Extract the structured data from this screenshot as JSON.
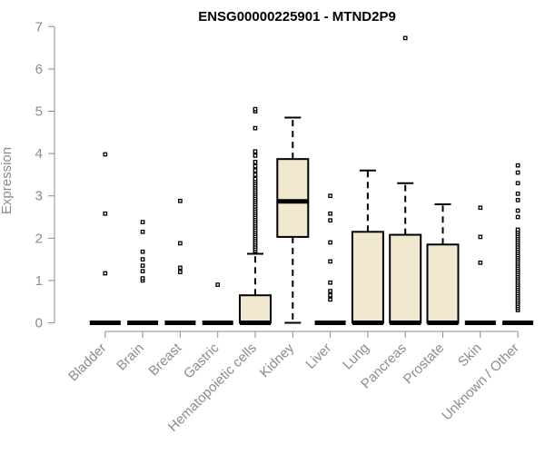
{
  "chart_data": {
    "type": "boxplot",
    "title": "ENSG00000225901 - MTND2P9",
    "xlabel": "",
    "ylabel": "Expression",
    "ylim": [
      0,
      7
    ],
    "yticks": [
      0,
      1,
      2,
      3,
      4,
      5,
      6,
      7
    ],
    "box_fill": "#f0e9cf",
    "box_stroke": "#000000",
    "point_color": "#000000",
    "axis_color": "#8c8c8c",
    "categories": [
      "Bladder",
      "Brain",
      "Breast",
      "Gastric",
      "Hematopoietic cells",
      "Kidney",
      "Liver",
      "Lung",
      "Pancreas",
      "Prostate",
      "Skin",
      "Unknown / Other"
    ],
    "boxes": [
      {
        "category": "Bladder",
        "q1": 0,
        "median": 0,
        "q3": 0,
        "whisker_low": 0,
        "whisker_high": 0,
        "outliers": [
          1.17,
          2.58,
          3.98
        ]
      },
      {
        "category": "Brain",
        "q1": 0,
        "median": 0,
        "q3": 0,
        "whisker_low": 0,
        "whisker_high": 0,
        "outliers": [
          1.0,
          1.05,
          1.22,
          1.35,
          1.5,
          1.68,
          2.15,
          2.38
        ]
      },
      {
        "category": "Breast",
        "q1": 0,
        "median": 0,
        "q3": 0,
        "whisker_low": 0,
        "whisker_high": 0,
        "outliers": [
          1.2,
          1.3,
          1.88,
          2.88
        ]
      },
      {
        "category": "Gastric",
        "q1": 0,
        "median": 0,
        "q3": 0,
        "whisker_low": 0,
        "whisker_high": 0,
        "outliers": [
          0.9
        ]
      },
      {
        "category": "Hematopoietic cells",
        "q1": 0,
        "median": 0,
        "q3": 0.65,
        "whisker_low": 0,
        "whisker_high": 1.63,
        "outliers": [
          1.7,
          1.75,
          1.8,
          1.85,
          1.9,
          1.95,
          2.0,
          2.05,
          2.1,
          2.15,
          2.2,
          2.25,
          2.3,
          2.35,
          2.4,
          2.45,
          2.5,
          2.55,
          2.6,
          2.65,
          2.7,
          2.75,
          2.8,
          2.85,
          2.9,
          2.95,
          3.0,
          3.05,
          3.1,
          3.15,
          3.2,
          3.25,
          3.3,
          3.35,
          3.4,
          3.5,
          3.6,
          3.7,
          3.8,
          3.95,
          4.05,
          4.6,
          5.0,
          5.05
        ]
      },
      {
        "category": "Kidney",
        "q1": 2.03,
        "median": 2.87,
        "q3": 3.87,
        "whisker_low": 0,
        "whisker_high": 4.85,
        "outliers": []
      },
      {
        "category": "Liver",
        "q1": 0,
        "median": 0,
        "q3": 0,
        "whisker_low": 0,
        "whisker_high": 0,
        "outliers": [
          0.55,
          0.65,
          0.75,
          0.95,
          1.45,
          1.9,
          2.42,
          2.58,
          3.0
        ]
      },
      {
        "category": "Lung",
        "q1": 0,
        "median": 0,
        "q3": 2.15,
        "whisker_low": 0,
        "whisker_high": 3.6,
        "outliers": []
      },
      {
        "category": "Pancreas",
        "q1": 0,
        "median": 0,
        "q3": 2.08,
        "whisker_low": 0,
        "whisker_high": 3.3,
        "outliers": [
          6.73
        ]
      },
      {
        "category": "Prostate",
        "q1": 0,
        "median": 0,
        "q3": 1.85,
        "whisker_low": 0,
        "whisker_high": 2.8,
        "outliers": []
      },
      {
        "category": "Skin",
        "q1": 0,
        "median": 0,
        "q3": 0,
        "whisker_low": 0,
        "whisker_high": 0,
        "outliers": [
          1.42,
          2.03,
          2.72
        ]
      },
      {
        "category": "Unknown / Other",
        "q1": 0,
        "median": 0,
        "q3": 0,
        "whisker_low": 0,
        "whisker_high": 0,
        "outliers": [
          0.3,
          0.35,
          0.4,
          0.45,
          0.5,
          0.55,
          0.6,
          0.65,
          0.7,
          0.75,
          0.8,
          0.85,
          0.9,
          0.95,
          1.0,
          1.05,
          1.1,
          1.15,
          1.2,
          1.25,
          1.3,
          1.35,
          1.4,
          1.45,
          1.5,
          1.55,
          1.6,
          1.65,
          1.7,
          1.75,
          1.8,
          1.85,
          1.9,
          1.95,
          2.0,
          2.05,
          2.1,
          2.15,
          2.2,
          2.5,
          2.65,
          2.9,
          3.05,
          3.3,
          3.55,
          3.72
        ]
      }
    ]
  }
}
